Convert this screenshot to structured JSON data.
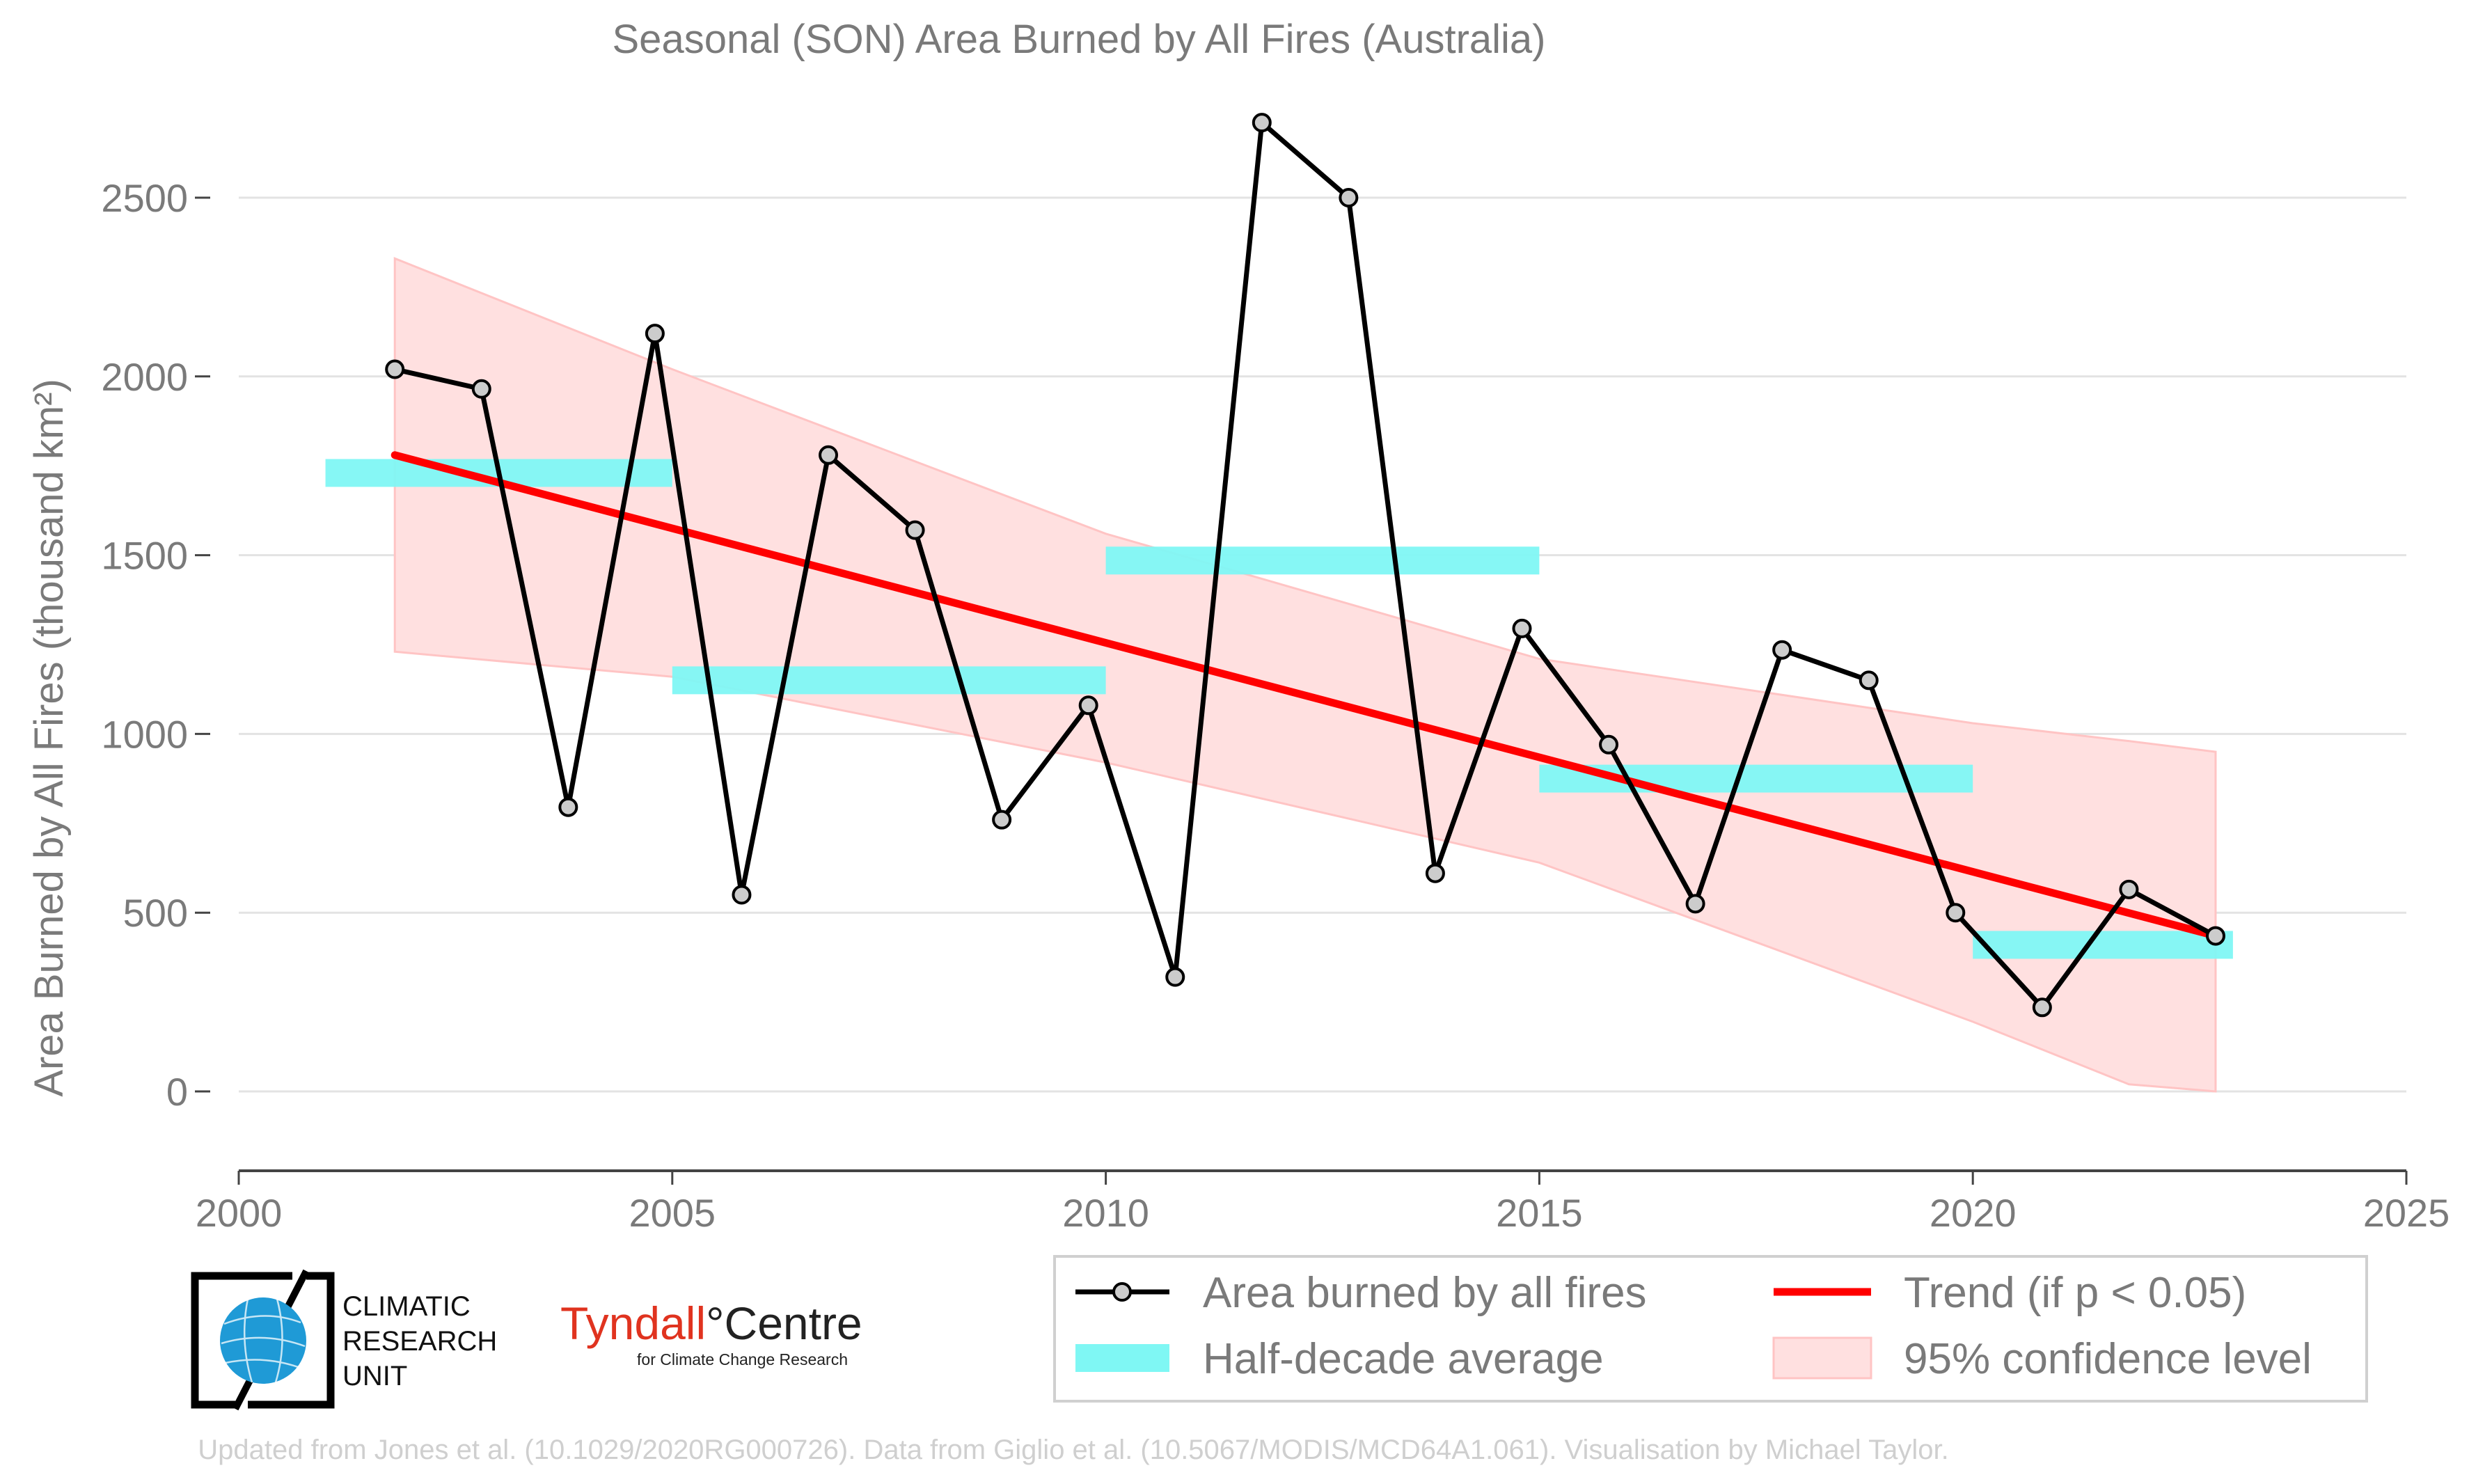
{
  "chart_data": {
    "type": "line",
    "title": "Seasonal (SON) Area Burned by All Fires (Australia)",
    "ylabel": "Area Burned by All Fires (thousand km²)",
    "xlabel": "",
    "xlim": [
      2000,
      2025
    ],
    "ylim": [
      -200,
      2750
    ],
    "x_ticks": [
      2000,
      2005,
      2010,
      2015,
      2020,
      2025
    ],
    "y_ticks": [
      0,
      500,
      1000,
      1500,
      2000,
      2500
    ],
    "grid": "horizontal",
    "legend_position": "bottom-right",
    "series": [
      {
        "name": "Area burned by all fires",
        "color": "#000000",
        "marker": "circle",
        "x": [
          2001.8,
          2002.8,
          2003.8,
          2004.8,
          2005.8,
          2006.8,
          2007.8,
          2008.8,
          2009.8,
          2010.8,
          2011.8,
          2012.8,
          2013.8,
          2014.8,
          2015.8,
          2016.8,
          2017.8,
          2018.8,
          2019.8,
          2020.8,
          2021.8,
          2022.8
        ],
        "values": [
          2020,
          1965,
          795,
          2120,
          550,
          1780,
          1570,
          760,
          1080,
          320,
          2710,
          2500,
          610,
          1295,
          970,
          525,
          1235,
          1150,
          500,
          235,
          565,
          435
        ]
      },
      {
        "name": "Half-decade average",
        "color": "#7ff7f4",
        "segments": [
          {
            "x0": 2001,
            "x1": 2005,
            "value": 1730
          },
          {
            "x0": 2005,
            "x1": 2010,
            "value": 1150
          },
          {
            "x0": 2010,
            "x1": 2015,
            "value": 1485
          },
          {
            "x0": 2015,
            "x1": 2020,
            "value": 875
          },
          {
            "x0": 2020,
            "x1": 2023,
            "value": 410
          }
        ]
      },
      {
        "name": "Trend (if p < 0.05)",
        "color": "#ff0000",
        "x": [
          2001.8,
          2022.8
        ],
        "values": [
          1780,
          435
        ]
      },
      {
        "name": "95% confidence level",
        "color": "#ffe0e0",
        "x": [
          2001.8,
          2005,
          2010,
          2015,
          2020,
          2021.8,
          2022.8
        ],
        "upper": [
          2330,
          2020,
          1560,
          1210,
          1030,
          980,
          950
        ],
        "lower": [
          1230,
          1160,
          920,
          640,
          195,
          20,
          0
        ]
      }
    ]
  },
  "logos": {
    "cru": {
      "line1": "CLIMATIC",
      "line2": "RESEARCH",
      "line3": "UNIT",
      "globe_color": "#1f9ad6"
    },
    "tyndall": {
      "main": "Tyndall",
      "degree": "°",
      "rest": "Centre",
      "sub": "for Climate Change Research"
    }
  },
  "footer": "Updated from Jones et al. (10.1029/2020RG000726). Data from Giglio et al. (10.5067/MODIS/MCD64A1.061). Visualisation by Michael Taylor."
}
